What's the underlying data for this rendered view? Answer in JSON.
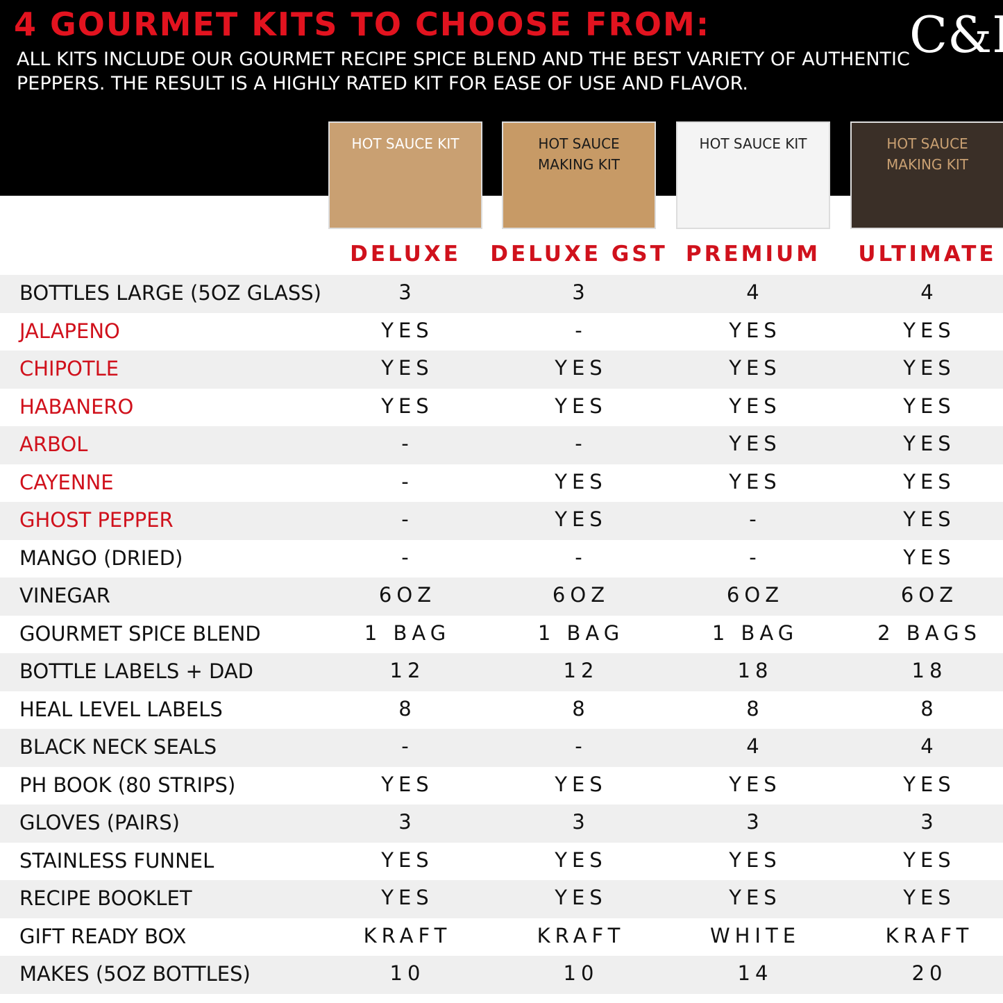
{
  "header": {
    "title": "4 GOURMET KITS TO CHOOSE FROM:",
    "subtitle_lines": [
      "ALL KITS INCLUDE OUR GOURMET RECIPE SPICE BLEND AND THE BEST VARIETY OF AUTHENTIC",
      "PEPPERS. THE RESULT IS A HIGHLY RATED KIT FOR EASE OF USE AND FLAVOR."
    ],
    "logo": "C&P"
  },
  "products": [
    {
      "name": "DELUXE",
      "box_text": [
        "HOT SAUCE KIT"
      ],
      "box_color": "#c9a072",
      "box_text_color": "#ffffff"
    },
    {
      "name": "DELUXE GST",
      "box_text": [
        "HOT SAUCE",
        "MAKING KIT"
      ],
      "box_color": "#c79a66",
      "box_text_color": "#1a1a1a"
    },
    {
      "name": "PREMIUM",
      "box_text": [
        "HOT SAUCE KIT"
      ],
      "box_color": "#f4f4f4",
      "box_text_color": "#222222"
    },
    {
      "name": "ULTIMATE",
      "box_text": [
        "HOT SAUCE",
        "MAKING KIT"
      ],
      "box_color": "#3a2f27",
      "box_text_color": "#c9a072"
    }
  ],
  "table": {
    "rows": [
      {
        "label": "BOTTLES LARGE (5OZ GLASS)",
        "pepper": false,
        "cells": [
          "3",
          "3",
          "4",
          "4"
        ]
      },
      {
        "label": "JALAPENO",
        "pepper": true,
        "cells": [
          "YES",
          "-",
          "YES",
          "YES"
        ]
      },
      {
        "label": "CHIPOTLE",
        "pepper": true,
        "cells": [
          "YES",
          "YES",
          "YES",
          "YES"
        ]
      },
      {
        "label": "HABANERO",
        "pepper": true,
        "cells": [
          "YES",
          "YES",
          "YES",
          "YES"
        ]
      },
      {
        "label": "ARBOL",
        "pepper": true,
        "cells": [
          "-",
          "-",
          "YES",
          "YES"
        ]
      },
      {
        "label": "CAYENNE",
        "pepper": true,
        "cells": [
          "-",
          "YES",
          "YES",
          "YES"
        ]
      },
      {
        "label": "GHOST PEPPER",
        "pepper": true,
        "cells": [
          "-",
          "YES",
          "-",
          "YES"
        ]
      },
      {
        "label": "MANGO (DRIED)",
        "pepper": false,
        "cells": [
          "-",
          "-",
          "-",
          "YES"
        ]
      },
      {
        "label": "VINEGAR",
        "pepper": false,
        "cells": [
          "6OZ",
          "6OZ",
          "6OZ",
          "6OZ"
        ]
      },
      {
        "label": "GOURMET SPICE BLEND",
        "pepper": false,
        "cells": [
          "1 BAG",
          "1 BAG",
          "1 BAG",
          "2 BAGS"
        ]
      },
      {
        "label": "BOTTLE LABELS + DAD",
        "pepper": false,
        "cells": [
          "12",
          "12",
          "18",
          "18"
        ]
      },
      {
        "label": "HEAL LEVEL LABELS",
        "pepper": false,
        "cells": [
          "8",
          "8",
          "8",
          "8"
        ]
      },
      {
        "label": "BLACK NECK SEALS",
        "pepper": false,
        "cells": [
          "-",
          "-",
          "4",
          "4"
        ]
      },
      {
        "label": "PH BOOK (80 STRIPS)",
        "pepper": false,
        "cells": [
          "YES",
          "YES",
          "YES",
          "YES"
        ]
      },
      {
        "label": "GLOVES (PAIRS)",
        "pepper": false,
        "cells": [
          "3",
          "3",
          "3",
          "3"
        ]
      },
      {
        "label": "STAINLESS FUNNEL",
        "pepper": false,
        "cells": [
          "YES",
          "YES",
          "YES",
          "YES"
        ]
      },
      {
        "label": "RECIPE BOOKLET",
        "pepper": false,
        "cells": [
          "YES",
          "YES",
          "YES",
          "YES"
        ]
      },
      {
        "label": "GIFT READY BOX",
        "pepper": false,
        "cells": [
          "KRAFT",
          "KRAFT",
          "WHITE",
          "KRAFT"
        ]
      },
      {
        "label": "MAKES (5OZ BOTTLES)",
        "pepper": false,
        "cells": [
          "10",
          "10",
          "14",
          "20"
        ]
      }
    ]
  }
}
